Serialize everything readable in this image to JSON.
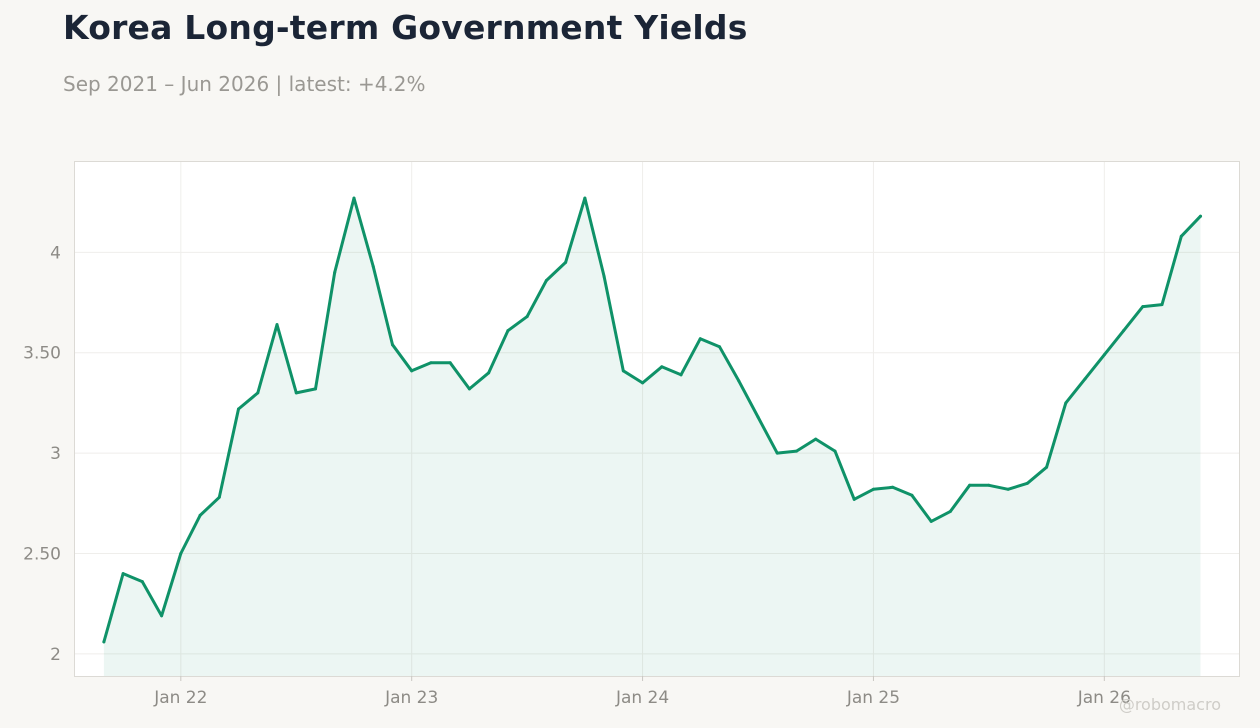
{
  "title": "Korea Long-term Government Yields",
  "subtitle": "Sep 2021 – Jun 2026 | latest: +4.2%",
  "watermark": "@robomacro",
  "colors": {
    "line": "#0f9268",
    "fill": "#0f9268",
    "background": "#f8f7f4",
    "plot_bg": "#ffffff"
  },
  "chart_data": {
    "type": "area",
    "title": "Korea Long-term Government Yields",
    "subtitle": "Sep 2021 – Jun 2026 | latest: +4.2%",
    "xlabel": "",
    "ylabel": "",
    "x": [
      "2021-09",
      "2021-10",
      "2021-11",
      "2021-12",
      "2022-01",
      "2022-02",
      "2022-03",
      "2022-04",
      "2022-05",
      "2022-06",
      "2022-07",
      "2022-08",
      "2022-09",
      "2022-10",
      "2022-11",
      "2022-12",
      "2023-01",
      "2023-02",
      "2023-03",
      "2023-04",
      "2023-05",
      "2023-06",
      "2023-07",
      "2023-08",
      "2023-09",
      "2023-10",
      "2023-11",
      "2023-12",
      "2024-01",
      "2024-02",
      "2024-03",
      "2024-04",
      "2024-05",
      "2024-06",
      "2024-07",
      "2024-08",
      "2024-09",
      "2024-10",
      "2024-11",
      "2024-12",
      "2025-01",
      "2025-02",
      "2025-03",
      "2025-04",
      "2025-05",
      "2025-06",
      "2025-07",
      "2025-08",
      "2025-09",
      "2025-10",
      "2025-11",
      "2025-12",
      "2026-01",
      "2026-02",
      "2026-03",
      "2026-04",
      "2026-05",
      "2026-06"
    ],
    "values": [
      2.06,
      2.4,
      2.36,
      2.19,
      2.5,
      2.69,
      2.78,
      3.22,
      3.3,
      3.64,
      3.3,
      3.32,
      3.9,
      4.27,
      3.93,
      3.54,
      3.41,
      3.45,
      3.45,
      3.32,
      3.4,
      3.61,
      3.68,
      3.86,
      3.95,
      4.27,
      3.88,
      3.41,
      3.35,
      3.43,
      3.39,
      3.57,
      3.53,
      3.36,
      3.18,
      3.0,
      3.01,
      3.07,
      3.01,
      2.77,
      2.82,
      2.83,
      2.79,
      2.66,
      2.71,
      2.84,
      2.84,
      2.82,
      2.85,
      2.93,
      3.25,
      3.37,
      3.49,
      3.61,
      3.73,
      3.74,
      4.08,
      4.18
    ],
    "x_ticks": [
      "Jan 22",
      "Jan 23",
      "Jan 24",
      "Jan 25",
      "Jan 26"
    ],
    "y_ticks": [
      "2",
      "2.50",
      "3",
      "3.50",
      "4"
    ],
    "ylim": [
      1.89,
      4.45
    ],
    "grid": true,
    "legend": "none"
  }
}
